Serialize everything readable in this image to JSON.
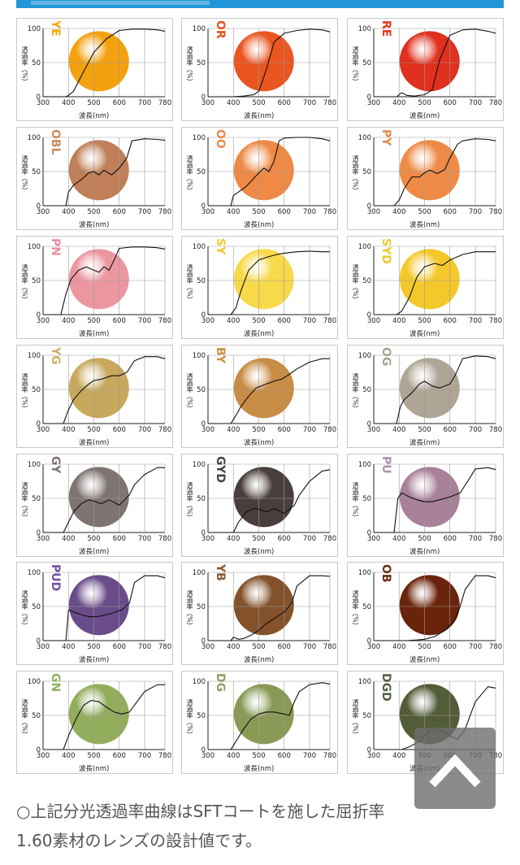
{
  "chart_data": {
    "type": "line",
    "ylabel": "透過率（%）",
    "xlabel": "波長(nm)",
    "x_ticks": [
      300,
      400,
      500,
      600,
      700,
      780
    ],
    "y_ticks": [
      0,
      50,
      100
    ],
    "xlim": [
      300,
      780
    ],
    "ylim": [
      0,
      100
    ],
    "grid": true,
    "panels": [
      {
        "name": "YE",
        "name_color": "#f2a900",
        "lens_color": "#f3a10e",
        "x": [
          300,
          380,
          390,
          400,
          420,
          450,
          500,
          550,
          600,
          650,
          700,
          750,
          780
        ],
        "values": [
          0,
          0,
          0,
          2,
          8,
          30,
          65,
          85,
          97,
          99,
          99,
          98,
          96
        ]
      },
      {
        "name": "OR",
        "name_color": "#e0531c",
        "lens_color": "#ea5520",
        "x": [
          300,
          400,
          440,
          480,
          500,
          530,
          560,
          600,
          650,
          700,
          750,
          780
        ],
        "values": [
          0,
          0,
          1,
          3,
          8,
          40,
          80,
          93,
          97,
          99,
          98,
          95
        ]
      },
      {
        "name": "RE",
        "name_color": "#e03a1e",
        "lens_color": "#e0301f",
        "x": [
          300,
          390,
          410,
          430,
          460,
          500,
          530,
          560,
          600,
          650,
          700,
          750,
          780
        ],
        "values": [
          0,
          0,
          6,
          2,
          1,
          3,
          10,
          55,
          90,
          98,
          99,
          96,
          93
        ]
      },
      {
        "name": "OBL",
        "name_color": "#c88a5e",
        "lens_color": "#c07f58",
        "x": [
          300,
          390,
          400,
          420,
          450,
          480,
          500,
          520,
          540,
          570,
          600,
          630,
          650,
          700,
          750,
          780
        ],
        "values": [
          0,
          0,
          20,
          30,
          38,
          48,
          50,
          45,
          52,
          45,
          55,
          70,
          95,
          98,
          97,
          96
        ]
      },
      {
        "name": "OO",
        "name_color": "#e8884a",
        "lens_color": "#ee8a45",
        "x": [
          300,
          390,
          400,
          420,
          450,
          480,
          500,
          520,
          540,
          560,
          580,
          600,
          650,
          700,
          750,
          780
        ],
        "values": [
          0,
          0,
          15,
          20,
          28,
          40,
          48,
          55,
          50,
          65,
          95,
          99,
          100,
          100,
          98,
          95
        ]
      },
      {
        "name": "PY",
        "name_color": "#e8884a",
        "lens_color": "#ee8a45",
        "x": [
          300,
          380,
          400,
          420,
          450,
          480,
          500,
          520,
          550,
          580,
          600,
          630,
          650,
          700,
          750,
          780
        ],
        "values": [
          0,
          0,
          8,
          25,
          42,
          42,
          48,
          52,
          47,
          53,
          70,
          90,
          95,
          98,
          97,
          95
        ]
      },
      {
        "name": "PN",
        "name_color": "#e88fa0",
        "lens_color": "#ec97a0",
        "x": [
          300,
          370,
          390,
          410,
          440,
          470,
          500,
          520,
          540,
          560,
          580,
          600,
          650,
          700,
          750,
          780
        ],
        "values": [
          0,
          0,
          30,
          52,
          65,
          70,
          65,
          62,
          70,
          65,
          80,
          97,
          99,
          99,
          98,
          96
        ]
      },
      {
        "name": "SY",
        "name_color": "#f0c830",
        "lens_color": "#f7d94a",
        "x": [
          300,
          390,
          410,
          430,
          460,
          500,
          540,
          570,
          600,
          650,
          700,
          750,
          780
        ],
        "values": [
          0,
          0,
          10,
          35,
          65,
          80,
          85,
          88,
          90,
          92,
          93,
          92,
          92
        ]
      },
      {
        "name": "SYD",
        "name_color": "#f0c830",
        "lens_color": "#f3c82a",
        "x": [
          300,
          390,
          410,
          440,
          470,
          500,
          540,
          570,
          600,
          650,
          700,
          750,
          780
        ],
        "values": [
          0,
          0,
          5,
          25,
          55,
          70,
          75,
          72,
          80,
          88,
          92,
          92,
          92
        ]
      },
      {
        "name": "YG",
        "name_color": "#c8b060",
        "lens_color": "#c7a85c",
        "x": [
          300,
          380,
          400,
          420,
          450,
          480,
          500,
          530,
          570,
          600,
          630,
          660,
          700,
          750,
          780
        ],
        "values": [
          0,
          0,
          20,
          35,
          48,
          58,
          63,
          65,
          70,
          70,
          75,
          92,
          98,
          98,
          95
        ]
      },
      {
        "name": "BY",
        "name_color": "#c89040",
        "lens_color": "#c88c44",
        "x": [
          300,
          390,
          410,
          430,
          460,
          490,
          510,
          530,
          560,
          590,
          620,
          650,
          700,
          750,
          780
        ],
        "values": [
          0,
          0,
          12,
          25,
          40,
          52,
          55,
          58,
          62,
          65,
          72,
          80,
          90,
          95,
          95
        ]
      },
      {
        "name": "OG",
        "name_color": "#a8a090",
        "lens_color": "#aea595",
        "x": [
          300,
          390,
          405,
          420,
          450,
          480,
          500,
          530,
          560,
          600,
          620,
          650,
          700,
          750,
          780
        ],
        "values": [
          0,
          0,
          25,
          35,
          45,
          58,
          62,
          55,
          52,
          58,
          70,
          95,
          99,
          98,
          95
        ]
      },
      {
        "name": "GY",
        "name_color": "#7a7070",
        "lens_color": "#7e7472",
        "x": [
          300,
          380,
          400,
          420,
          450,
          480,
          500,
          530,
          560,
          600,
          640,
          660,
          700,
          750,
          780
        ],
        "values": [
          0,
          0,
          15,
          30,
          42,
          48,
          46,
          42,
          48,
          40,
          55,
          70,
          85,
          95,
          95
        ]
      },
      {
        "name": "GYD",
        "name_color": "#4a4040",
        "lens_color": "#4a3e3c",
        "x": [
          300,
          400,
          420,
          450,
          480,
          500,
          530,
          560,
          600,
          640,
          660,
          700,
          750,
          780
        ],
        "values": [
          0,
          0,
          15,
          30,
          35,
          34,
          30,
          35,
          28,
          40,
          55,
          75,
          90,
          92
        ]
      },
      {
        "name": "PU",
        "name_color": "#b090a8",
        "lens_color": "#a88098",
        "x": [
          300,
          380,
          395,
          410,
          440,
          470,
          500,
          530,
          560,
          600,
          640,
          670,
          700,
          750,
          780
        ],
        "values": [
          0,
          0,
          50,
          58,
          52,
          48,
          45,
          45,
          48,
          52,
          58,
          75,
          93,
          95,
          92
        ]
      },
      {
        "name": "PUD",
        "name_color": "#7050a0",
        "lens_color": "#6a4c8a",
        "x": [
          300,
          390,
          400,
          420,
          450,
          480,
          510,
          540,
          570,
          610,
          640,
          660,
          700,
          750,
          780
        ],
        "values": [
          0,
          0,
          45,
          42,
          38,
          35,
          35,
          37,
          40,
          45,
          55,
          85,
          95,
          95,
          92
        ]
      },
      {
        "name": "YB",
        "name_color": "#8a5a30",
        "lens_color": "#83522a",
        "x": [
          300,
          390,
          400,
          420,
          440,
          470,
          500,
          530,
          560,
          600,
          630,
          650,
          700,
          750,
          780
        ],
        "values": [
          0,
          0,
          5,
          2,
          3,
          8,
          15,
          25,
          32,
          42,
          55,
          80,
          95,
          95,
          94
        ]
      },
      {
        "name": "OB",
        "name_color": "#6a2a10",
        "lens_color": "#6a240c",
        "x": [
          300,
          430,
          470,
          500,
          540,
          580,
          620,
          640,
          660,
          700,
          750,
          780
        ],
        "values": [
          0,
          0,
          1,
          2,
          6,
          15,
          30,
          50,
          75,
          95,
          95,
          92
        ]
      },
      {
        "name": "GN",
        "name_color": "#90b060",
        "lens_color": "#92ad5c",
        "x": [
          300,
          380,
          400,
          430,
          460,
          490,
          520,
          550,
          580,
          610,
          640,
          670,
          700,
          750,
          780
        ],
        "values": [
          0,
          0,
          20,
          45,
          65,
          72,
          70,
          62,
          55,
          52,
          55,
          70,
          85,
          95,
          95
        ]
      },
      {
        "name": "DG",
        "name_color": "#90a060",
        "lens_color": "#8a9a56",
        "x": [
          300,
          390,
          410,
          440,
          470,
          500,
          530,
          560,
          600,
          620,
          640,
          660,
          700,
          750,
          780
        ],
        "values": [
          0,
          0,
          12,
          30,
          45,
          52,
          55,
          55,
          52,
          50,
          70,
          85,
          95,
          98,
          96
        ]
      },
      {
        "name": "DGD",
        "name_color": "#506040",
        "lens_color": "#535c38",
        "x": [
          300,
          410,
          440,
          480,
          510,
          540,
          570,
          600,
          630,
          660,
          700,
          750,
          780
        ],
        "values": [
          0,
          0,
          4,
          12,
          25,
          30,
          28,
          20,
          15,
          30,
          70,
          92,
          90
        ]
      }
    ]
  },
  "note": {
    "line1": "○上記分光透過率曲線はSFTコートを施した屈折率",
    "line2": "1.60素材のレンズの設計値です。"
  },
  "back_to_top_icon": "chevron-up-icon"
}
